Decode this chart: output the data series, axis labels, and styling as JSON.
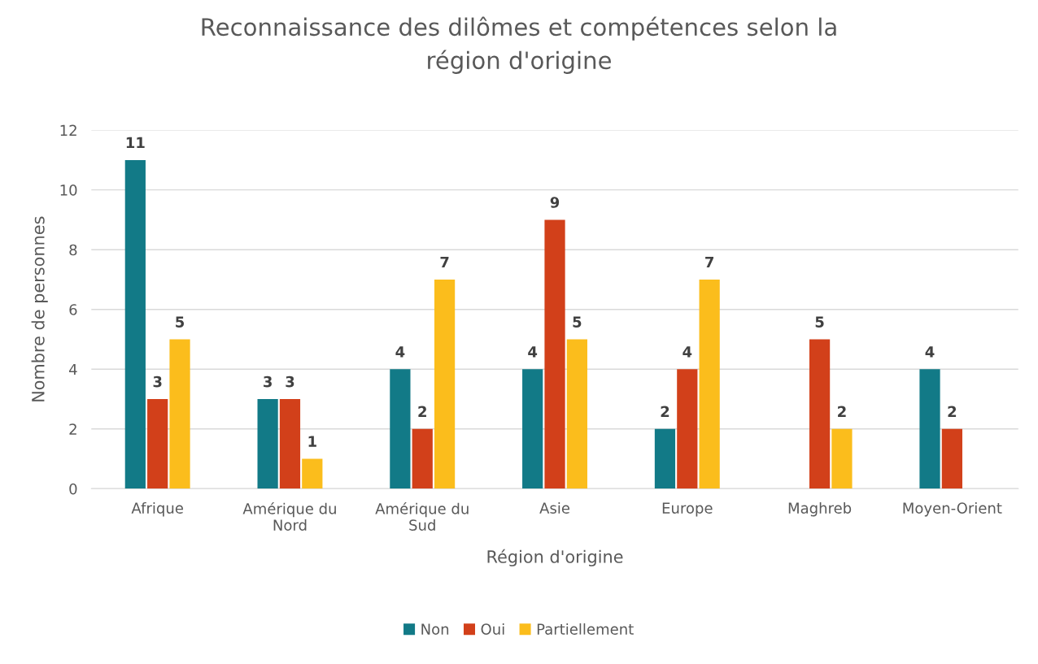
{
  "chart_data": {
    "type": "bar",
    "title": "Reconnaissance des dilômes et compétences selon la région d'origine",
    "xlabel": "Région d'origine",
    "ylabel": "Nombre de personnes",
    "categories": [
      "Afrique",
      "Amérique du Nord",
      "Amérique du Sud",
      "Asie",
      "Europe",
      "Maghreb",
      "Moyen-Orient"
    ],
    "series": [
      {
        "name": "Non",
        "color": "#127a87",
        "values": [
          11,
          3,
          4,
          4,
          2,
          null,
          4
        ]
      },
      {
        "name": "Oui",
        "color": "#d2401a",
        "values": [
          3,
          3,
          2,
          9,
          4,
          5,
          2
        ]
      },
      {
        "name": "Partiellement",
        "color": "#fbbd1c",
        "values": [
          5,
          1,
          7,
          5,
          7,
          2,
          null
        ]
      }
    ],
    "ylim": [
      0,
      12
    ],
    "yticks": [
      0,
      2,
      4,
      6,
      8,
      10,
      12
    ],
    "grid": "y",
    "legend": "bottom",
    "data_labels": true
  }
}
